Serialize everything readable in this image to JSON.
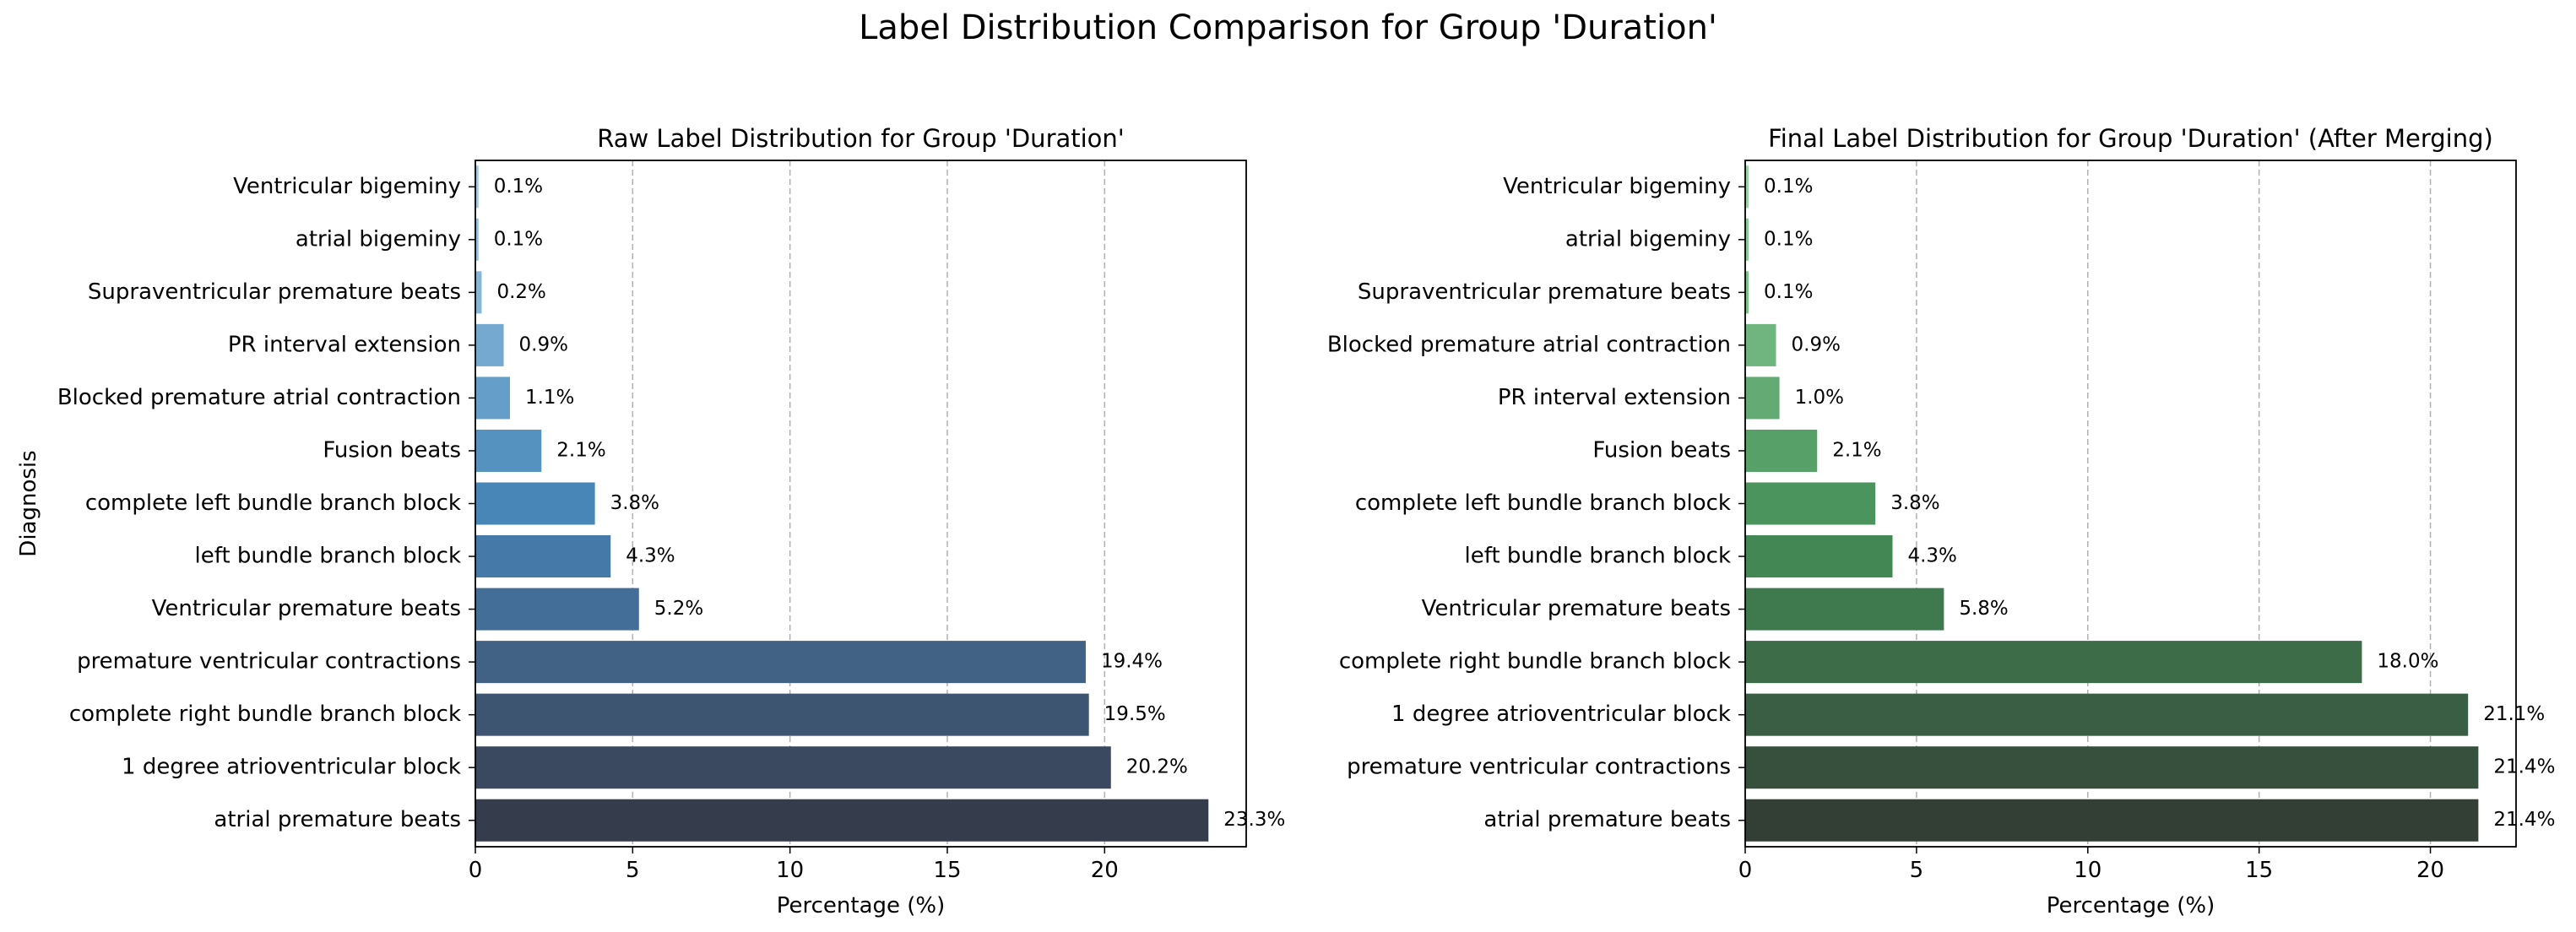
{
  "suptitle": "Label Distribution Comparison for Group 'Duration'",
  "chart_data": [
    {
      "type": "bar",
      "orientation": "horizontal",
      "title": "Raw Label Distribution for Group 'Duration'",
      "xlabel": "Percentage (%)",
      "ylabel": "Diagnosis",
      "xlim": [
        0,
        24.5
      ],
      "xticks": [
        "0",
        "5",
        "10",
        "15",
        "20"
      ],
      "grid": "x-dashed",
      "categories": [
        "Ventricular bigeminy",
        "atrial bigeminy",
        "Supraventricular premature beats",
        "PR interval extension",
        "Blocked premature atrial contraction",
        "Fusion beats",
        "complete left bundle branch block",
        "left bundle branch block",
        "Ventricular premature beats",
        "premature ventricular contractions",
        "complete right bundle branch block",
        "1 degree atrioventricular block",
        "atrial premature beats"
      ],
      "values": [
        0.1,
        0.1,
        0.2,
        0.9,
        1.1,
        2.1,
        3.8,
        4.3,
        5.2,
        19.4,
        19.5,
        20.2,
        23.3
      ],
      "labels": [
        "0.1%",
        "0.1%",
        "0.2%",
        "0.9%",
        "1.1%",
        "2.1%",
        "3.8%",
        "4.3%",
        "5.2%",
        "19.4%",
        "19.5%",
        "20.2%",
        "23.3%"
      ],
      "colors": [
        "#a3c8e0",
        "#95bfdc",
        "#87b6d7",
        "#76a9d0",
        "#659ec8",
        "#5592c0",
        "#4986b8",
        "#457aa8",
        "#436e97",
        "#416285",
        "#3e5572",
        "#3a495f",
        "#353c4b"
      ]
    },
    {
      "type": "bar",
      "orientation": "horizontal",
      "title": "Final Label Distribution for Group 'Duration' (After Merging)",
      "xlabel": "Percentage (%)",
      "ylabel": "",
      "xlim": [
        0,
        22.5
      ],
      "xticks": [
        "0",
        "5",
        "10",
        "15",
        "20"
      ],
      "grid": "x-dashed",
      "categories": [
        "Ventricular bigeminy",
        "atrial bigeminy",
        "Supraventricular premature beats",
        "Blocked premature atrial contraction",
        "PR interval extension",
        "Fusion beats",
        "complete left bundle branch block",
        "left bundle branch block",
        "Ventricular premature beats",
        "complete right bundle branch block",
        "1 degree atrioventricular block",
        "premature ventricular contractions",
        "atrial premature beats"
      ],
      "values": [
        0.1,
        0.1,
        0.1,
        0.9,
        1.0,
        2.1,
        3.8,
        4.3,
        5.8,
        18.0,
        21.1,
        21.4,
        21.4
      ],
      "labels": [
        "0.1%",
        "0.1%",
        "0.1%",
        "0.9%",
        "1.0%",
        "2.1%",
        "3.8%",
        "4.3%",
        "5.8%",
        "18.0%",
        "21.1%",
        "21.4%",
        "21.4%"
      ],
      "colors": [
        "#9ed2a6",
        "#8ec99a",
        "#7fc08d",
        "#70b580",
        "#63aa74",
        "#57a068",
        "#4b945d",
        "#438754",
        "#3f7a4e",
        "#3c6c48",
        "#395e43",
        "#36503d",
        "#333f35"
      ]
    }
  ]
}
